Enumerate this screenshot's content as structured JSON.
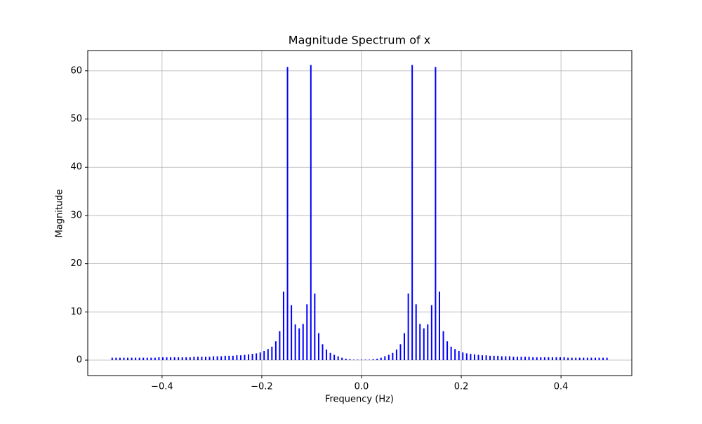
{
  "chart_data": {
    "type": "stem",
    "title": "Magnitude Spectrum of x",
    "xlabel": "Frequency (Hz)",
    "ylabel": "Magnitude",
    "color": "#0000ff",
    "grid": true,
    "x": [
      -0.5,
      -0.4922,
      -0.4844,
      -0.4766,
      -0.4688,
      -0.4609,
      -0.4531,
      -0.4453,
      -0.4375,
      -0.4297,
      -0.4219,
      -0.4141,
      -0.4063,
      -0.3984,
      -0.3906,
      -0.3828,
      -0.375,
      -0.3672,
      -0.3594,
      -0.3516,
      -0.3438,
      -0.3359,
      -0.3281,
      -0.3203,
      -0.3125,
      -0.3047,
      -0.2969,
      -0.2891,
      -0.2813,
      -0.2734,
      -0.2656,
      -0.2578,
      -0.25,
      -0.2422,
      -0.2344,
      -0.2266,
      -0.2188,
      -0.2109,
      -0.2031,
      -0.1953,
      -0.1875,
      -0.1797,
      -0.1719,
      -0.1641,
      -0.1563,
      -0.1484,
      -0.1406,
      -0.1328,
      -0.125,
      -0.1172,
      -0.1094,
      -0.1016,
      -0.0938,
      -0.0859,
      -0.0781,
      -0.0703,
      -0.0625,
      -0.0547,
      -0.0469,
      -0.0391,
      -0.0313,
      -0.0234,
      -0.0156,
      -0.0078,
      0,
      0.0078,
      0.0156,
      0.0234,
      0.0313,
      0.0391,
      0.0469,
      0.0547,
      0.0625,
      0.0703,
      0.0781,
      0.0859,
      0.0938,
      0.1016,
      0.1094,
      0.1172,
      0.125,
      0.1328,
      0.1406,
      0.1484,
      0.1563,
      0.1641,
      0.1719,
      0.1797,
      0.1875,
      0.1953,
      0.2031,
      0.2109,
      0.2188,
      0.2266,
      0.2344,
      0.2422,
      0.25,
      0.2578,
      0.2656,
      0.2734,
      0.2813,
      0.2891,
      0.2969,
      0.3047,
      0.3125,
      0.3203,
      0.3281,
      0.3359,
      0.3438,
      0.3516,
      0.3594,
      0.3672,
      0.375,
      0.3828,
      0.3906,
      0.3984,
      0.4063,
      0.4141,
      0.4219,
      0.4297,
      0.4375,
      0.4453,
      0.4531,
      0.4609,
      0.4688,
      0.4766,
      0.4844,
      0.4922
    ],
    "values": [
      0.5,
      0.5,
      0.5,
      0.5,
      0.5,
      0.5,
      0.5,
      0.5,
      0.5,
      0.5,
      0.5,
      0.5,
      0.6,
      0.6,
      0.6,
      0.6,
      0.6,
      0.6,
      0.6,
      0.6,
      0.6,
      0.7,
      0.7,
      0.7,
      0.7,
      0.7,
      0.8,
      0.8,
      0.8,
      0.9,
      0.9,
      0.9,
      1.0,
      1.0,
      1.1,
      1.2,
      1.3,
      1.4,
      1.6,
      1.9,
      2.3,
      2.8,
      3.9,
      6.0,
      14.2,
      60.8,
      11.4,
      7.4,
      6.6,
      7.5,
      11.6,
      61.2,
      13.8,
      5.6,
      3.3,
      2.2,
      1.5,
      1.1,
      0.8,
      0.5,
      0.3,
      0.2,
      0.1,
      0.1,
      0.1,
      0.1,
      0.1,
      0.2,
      0.3,
      0.5,
      0.8,
      1.1,
      1.5,
      2.2,
      3.3,
      5.6,
      13.8,
      61.2,
      11.6,
      7.5,
      6.6,
      7.4,
      11.4,
      60.8,
      14.2,
      6.0,
      3.9,
      2.8,
      2.3,
      1.9,
      1.6,
      1.4,
      1.3,
      1.2,
      1.1,
      1.0,
      1.0,
      0.9,
      0.9,
      0.9,
      0.8,
      0.8,
      0.8,
      0.7,
      0.7,
      0.7,
      0.7,
      0.7,
      0.6,
      0.6,
      0.6,
      0.6,
      0.6,
      0.6,
      0.6,
      0.6,
      0.6,
      0.5,
      0.5,
      0.5,
      0.5,
      0.5,
      0.5,
      0.5,
      0.5,
      0.5,
      0.5,
      0.5
    ],
    "xlim": [
      -0.549,
      0.542
    ],
    "ylim": [
      -3.2,
      64.2
    ],
    "xticks": [
      {
        "value": -0.4,
        "label": "−0.4"
      },
      {
        "value": -0.2,
        "label": "−0.2"
      },
      {
        "value": 0,
        "label": "0.0"
      },
      0.2,
      0.4
    ],
    "yticks": [
      0,
      10,
      20,
      30,
      40,
      50,
      60
    ]
  }
}
